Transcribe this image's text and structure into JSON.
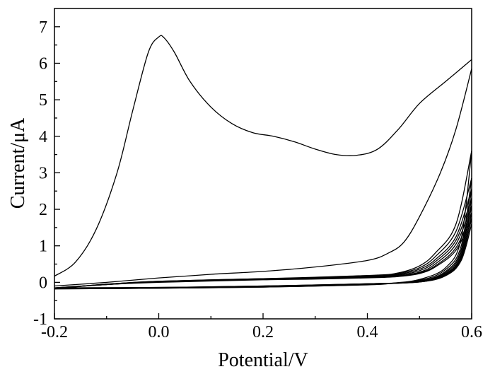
{
  "chart_data": {
    "type": "line",
    "xlabel": "Potential/V",
    "ylabel": "Current/μA",
    "xlim": [
      -0.2,
      0.6
    ],
    "ylim": [
      -1,
      7.5
    ],
    "x_ticks": [
      {
        "value": -0.2,
        "label": "-0.2"
      },
      {
        "value": 0.0,
        "label": "0.0"
      },
      {
        "value": 0.2,
        "label": "0.2"
      },
      {
        "value": 0.4,
        "label": "0.4"
      },
      {
        "value": 0.6,
        "label": "0.6"
      }
    ],
    "y_ticks": [
      {
        "value": -1,
        "label": "-1"
      },
      {
        "value": 0,
        "label": "0"
      },
      {
        "value": 1,
        "label": "1"
      },
      {
        "value": 2,
        "label": "2"
      },
      {
        "value": 3,
        "label": "3"
      },
      {
        "value": 4,
        "label": "4"
      },
      {
        "value": 5,
        "label": "5"
      },
      {
        "value": 6,
        "label": "6"
      },
      {
        "value": 7,
        "label": "7"
      }
    ],
    "grid": false,
    "series": [
      {
        "points": [
          [
            -0.2,
            0.17
          ],
          [
            -0.16,
            0.55
          ],
          [
            -0.12,
            1.45
          ],
          [
            -0.08,
            3.0
          ],
          [
            -0.05,
            4.7
          ],
          [
            -0.02,
            6.3
          ],
          [
            0.0,
            6.72
          ],
          [
            0.01,
            6.7
          ],
          [
            0.03,
            6.3
          ],
          [
            0.06,
            5.5
          ],
          [
            0.1,
            4.8
          ],
          [
            0.14,
            4.35
          ],
          [
            0.18,
            4.1
          ],
          [
            0.22,
            4.0
          ],
          [
            0.26,
            3.85
          ],
          [
            0.3,
            3.65
          ],
          [
            0.34,
            3.5
          ],
          [
            0.38,
            3.48
          ],
          [
            0.42,
            3.65
          ],
          [
            0.46,
            4.2
          ],
          [
            0.5,
            4.9
          ],
          [
            0.55,
            5.5
          ],
          [
            0.6,
            6.1
          ]
        ]
      },
      {
        "points": [
          [
            0.6,
            5.85
          ],
          [
            0.57,
            4.2
          ],
          [
            0.54,
            3.0
          ],
          [
            0.5,
            1.8
          ],
          [
            0.47,
            1.1
          ],
          [
            0.44,
            0.8
          ],
          [
            0.4,
            0.6
          ],
          [
            0.3,
            0.42
          ],
          [
            0.2,
            0.3
          ],
          [
            0.1,
            0.22
          ],
          [
            0.0,
            0.12
          ],
          [
            -0.1,
            0.0
          ],
          [
            -0.2,
            -0.1
          ]
        ]
      },
      {
        "points": [
          [
            -0.2,
            -0.18
          ],
          [
            0.0,
            -0.16
          ],
          [
            0.2,
            -0.13
          ],
          [
            0.4,
            -0.07
          ],
          [
            0.45,
            -0.02
          ],
          [
            0.5,
            0.08
          ],
          [
            0.55,
            0.4
          ],
          [
            0.58,
            1.2
          ],
          [
            0.6,
            3.6
          ]
        ]
      },
      {
        "points": [
          [
            0.6,
            3.6
          ],
          [
            0.57,
            1.6
          ],
          [
            0.53,
            0.8
          ],
          [
            0.5,
            0.45
          ],
          [
            0.46,
            0.26
          ],
          [
            0.42,
            0.2
          ],
          [
            0.3,
            0.14
          ],
          [
            0.2,
            0.1
          ],
          [
            0.0,
            0.03
          ],
          [
            -0.1,
            -0.05
          ],
          [
            -0.2,
            -0.18
          ]
        ]
      },
      {
        "points": [
          [
            -0.2,
            -0.18
          ],
          [
            0.0,
            -0.16
          ],
          [
            0.2,
            -0.13
          ],
          [
            0.4,
            -0.06
          ],
          [
            0.5,
            0.06
          ],
          [
            0.55,
            0.35
          ],
          [
            0.58,
            1.0
          ],
          [
            0.6,
            2.85
          ]
        ]
      },
      {
        "points": [
          [
            0.6,
            2.85
          ],
          [
            0.57,
            1.4
          ],
          [
            0.53,
            0.7
          ],
          [
            0.5,
            0.4
          ],
          [
            0.46,
            0.24
          ],
          [
            0.42,
            0.18
          ],
          [
            0.3,
            0.13
          ],
          [
            0.2,
            0.1
          ],
          [
            0.0,
            0.03
          ],
          [
            -0.1,
            -0.05
          ],
          [
            -0.2,
            -0.17
          ]
        ]
      },
      {
        "points": [
          [
            -0.2,
            -0.17
          ],
          [
            0.0,
            -0.16
          ],
          [
            0.2,
            -0.12
          ],
          [
            0.4,
            -0.06
          ],
          [
            0.5,
            0.04
          ],
          [
            0.55,
            0.3
          ],
          [
            0.58,
            0.9
          ],
          [
            0.6,
            2.55
          ]
        ]
      },
      {
        "points": [
          [
            0.6,
            2.55
          ],
          [
            0.57,
            1.25
          ],
          [
            0.53,
            0.62
          ],
          [
            0.5,
            0.36
          ],
          [
            0.46,
            0.22
          ],
          [
            0.42,
            0.17
          ],
          [
            0.3,
            0.12
          ],
          [
            0.2,
            0.09
          ],
          [
            0.0,
            0.02
          ],
          [
            -0.1,
            -0.05
          ],
          [
            -0.2,
            -0.17
          ]
        ]
      },
      {
        "points": [
          [
            -0.2,
            -0.17
          ],
          [
            0.0,
            -0.15
          ],
          [
            0.2,
            -0.12
          ],
          [
            0.4,
            -0.05
          ],
          [
            0.5,
            0.03
          ],
          [
            0.55,
            0.27
          ],
          [
            0.58,
            0.82
          ],
          [
            0.6,
            2.3
          ]
        ]
      },
      {
        "points": [
          [
            0.6,
            2.3
          ],
          [
            0.57,
            1.15
          ],
          [
            0.53,
            0.56
          ],
          [
            0.5,
            0.32
          ],
          [
            0.46,
            0.2
          ],
          [
            0.42,
            0.16
          ],
          [
            0.3,
            0.11
          ],
          [
            0.2,
            0.09
          ],
          [
            0.0,
            0.02
          ],
          [
            -0.1,
            -0.06
          ],
          [
            -0.2,
            -0.16
          ]
        ]
      },
      {
        "points": [
          [
            -0.2,
            -0.16
          ],
          [
            0.0,
            -0.15
          ],
          [
            0.2,
            -0.11
          ],
          [
            0.4,
            -0.05
          ],
          [
            0.5,
            0.02
          ],
          [
            0.55,
            0.24
          ],
          [
            0.58,
            0.75
          ],
          [
            0.6,
            2.1
          ]
        ]
      },
      {
        "points": [
          [
            0.6,
            2.1
          ],
          [
            0.57,
            1.05
          ],
          [
            0.53,
            0.5
          ],
          [
            0.5,
            0.28
          ],
          [
            0.46,
            0.18
          ],
          [
            0.42,
            0.15
          ],
          [
            0.3,
            0.1
          ],
          [
            0.2,
            0.08
          ],
          [
            0.0,
            0.01
          ],
          [
            -0.1,
            -0.06
          ],
          [
            -0.2,
            -0.16
          ]
        ]
      },
      {
        "points": [
          [
            -0.2,
            -0.16
          ],
          [
            0.0,
            -0.15
          ],
          [
            0.2,
            -0.11
          ],
          [
            0.4,
            -0.04
          ],
          [
            0.5,
            0.02
          ],
          [
            0.55,
            0.22
          ],
          [
            0.58,
            0.7
          ],
          [
            0.6,
            1.9
          ]
        ]
      },
      {
        "points": [
          [
            0.6,
            1.9
          ],
          [
            0.57,
            0.95
          ],
          [
            0.53,
            0.45
          ],
          [
            0.5,
            0.26
          ],
          [
            0.46,
            0.17
          ],
          [
            0.42,
            0.14
          ],
          [
            0.3,
            0.1
          ],
          [
            0.2,
            0.08
          ],
          [
            0.0,
            0.01
          ],
          [
            -0.1,
            -0.06
          ],
          [
            -0.2,
            -0.15
          ]
        ]
      },
      {
        "points": [
          [
            -0.2,
            -0.15
          ],
          [
            0.0,
            -0.14
          ],
          [
            0.2,
            -0.1
          ],
          [
            0.4,
            -0.04
          ],
          [
            0.5,
            0.01
          ],
          [
            0.55,
            0.2
          ],
          [
            0.58,
            0.65
          ],
          [
            0.6,
            1.75
          ]
        ]
      },
      {
        "points": [
          [
            0.6,
            1.75
          ],
          [
            0.57,
            0.88
          ],
          [
            0.53,
            0.42
          ],
          [
            0.5,
            0.24
          ],
          [
            0.46,
            0.16
          ],
          [
            0.42,
            0.13
          ],
          [
            0.3,
            0.09
          ],
          [
            0.2,
            0.07
          ],
          [
            0.0,
            0.0
          ],
          [
            -0.1,
            -0.06
          ],
          [
            -0.2,
            -0.15
          ]
        ]
      },
      {
        "points": [
          [
            -0.2,
            -0.15
          ],
          [
            0.0,
            -0.14
          ],
          [
            0.2,
            -0.1
          ],
          [
            0.4,
            -0.04
          ],
          [
            0.5,
            0.01
          ],
          [
            0.55,
            0.18
          ],
          [
            0.58,
            0.6
          ],
          [
            0.6,
            1.6
          ]
        ]
      }
    ]
  }
}
